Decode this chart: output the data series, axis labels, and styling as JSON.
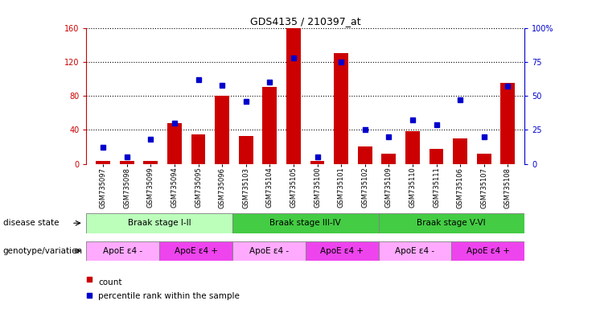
{
  "title": "GDS4135 / 210397_at",
  "samples": [
    "GSM735097",
    "GSM735098",
    "GSM735099",
    "GSM735094",
    "GSM735095",
    "GSM735096",
    "GSM735103",
    "GSM735104",
    "GSM735105",
    "GSM735100",
    "GSM735101",
    "GSM735102",
    "GSM735109",
    "GSM735110",
    "GSM735111",
    "GSM735106",
    "GSM735107",
    "GSM735108"
  ],
  "counts": [
    3,
    3,
    3,
    48,
    35,
    80,
    33,
    90,
    160,
    3,
    130,
    20,
    12,
    38,
    18,
    30,
    12,
    95
  ],
  "percentiles": [
    12,
    5,
    18,
    30,
    62,
    58,
    46,
    60,
    78,
    5,
    75,
    25,
    20,
    32,
    29,
    47,
    20,
    57
  ],
  "bar_color": "#cc0000",
  "dot_color": "#0000cc",
  "left_yaxis_color": "#cc0000",
  "right_yaxis_color": "#0000cc",
  "ylim_left": [
    0,
    160
  ],
  "ylim_right": [
    0,
    100
  ],
  "left_yticks": [
    0,
    40,
    80,
    120,
    160
  ],
  "right_yticks": [
    0,
    25,
    50,
    75,
    100
  ],
  "right_yticklabels": [
    "0",
    "25",
    "50",
    "75",
    "100%"
  ],
  "disease_colors": [
    "#bbffbb",
    "#44cc44",
    "#44cc44"
  ],
  "disease_ranges": [
    [
      0,
      6,
      "Braak stage I-II"
    ],
    [
      6,
      12,
      "Braak stage III-IV"
    ],
    [
      12,
      18,
      "Braak stage V-VI"
    ]
  ],
  "geno_colors": [
    "#ffaaff",
    "#ee44ee",
    "#ffaaff",
    "#ee44ee",
    "#ffaaff",
    "#ee44ee"
  ],
  "geno_ranges": [
    [
      0,
      3,
      "ApoE ε4 -"
    ],
    [
      3,
      6,
      "ApoE ε4 +"
    ],
    [
      6,
      9,
      "ApoE ε4 -"
    ],
    [
      9,
      12,
      "ApoE ε4 +"
    ],
    [
      12,
      15,
      "ApoE ε4 -"
    ],
    [
      15,
      18,
      "ApoE ε4 +"
    ]
  ],
  "background_color": "#ffffff",
  "bar_width": 0.6
}
